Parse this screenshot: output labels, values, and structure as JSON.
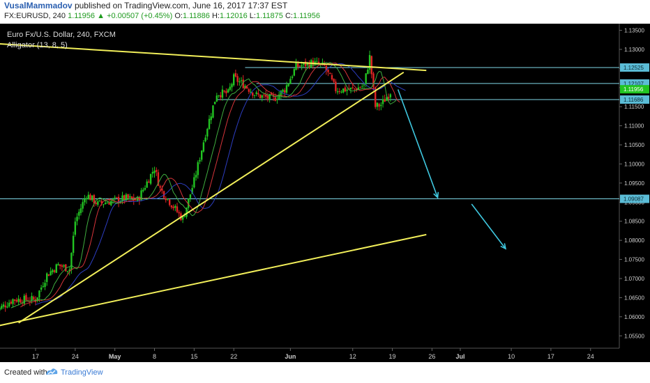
{
  "header": {
    "author": "VusalMammadov",
    "published": "published on TradingView.com, June 16, 2017 17:37 EST",
    "symbol": "FX:EURUSD, 240",
    "last": "1.11956",
    "change": "+0.00507 (+0.45%)",
    "o_label": "O:",
    "o_value": "1.11886",
    "h_label": "H:",
    "h_value": "1.12016",
    "l_label": "L:",
    "l_value": "1.11875",
    "c_label": "C:",
    "c_value": "1.11956"
  },
  "chart_title": "Euro Fx/U.S. Dollar, 240, FXCM",
  "indicator": "Alligator (13, 8, 5)",
  "footer": {
    "created": "Created with",
    "brand": "TradingView"
  },
  "colors": {
    "background": "#000000",
    "up_candle": "#22c522",
    "down_candle": "#e02424",
    "trendline": "#f2ef5a",
    "horizontal": "#7fd8e8",
    "arrow": "#3fc8e0",
    "price_tag": "#5bbcd6",
    "jaw": "#2d3ec2",
    "teeth": "#d6343a",
    "lips": "#3fae3f"
  },
  "chart_data": {
    "type": "candlestick",
    "yaxis_ticks": [
      "1.13500",
      "1.13000",
      "1.12500",
      "1.12000",
      "1.11500",
      "1.11000",
      "1.10500",
      "1.10000",
      "1.09500",
      "1.09000",
      "1.08500",
      "1.08000",
      "1.07500",
      "1.07000",
      "1.06500",
      "1.06000",
      "1.05500"
    ],
    "ylim": [
      1.0545,
      1.136
    ],
    "xaxis_ticks": [
      "17",
      "24",
      "May",
      "8",
      "15",
      "22",
      "Jun",
      "12",
      "19",
      "26",
      "Jul",
      "10",
      "17",
      "24"
    ],
    "price_tags": [
      "1.12525",
      "1.12107",
      "1.11956",
      "1.11686",
      "1.09087"
    ],
    "last_price": 1.11956,
    "horizontal_levels": [
      1.12525,
      1.12107,
      1.11686,
      1.09087
    ],
    "trendlines": [
      {
        "name": "upper",
        "from": [
          "Apr 10",
          1.1315
        ],
        "to": [
          "Jun 25",
          1.1245
        ]
      },
      {
        "name": "rising",
        "from": [
          "Apr 14",
          1.0584
        ],
        "to": [
          "Jun 21",
          1.124
        ]
      },
      {
        "name": "lower",
        "from": [
          "Apr 10",
          1.0575
        ],
        "to": [
          "Jun 25",
          1.0815
        ]
      }
    ],
    "arrows": [
      {
        "from": [
          "Jun 20",
          1.1195
        ],
        "to": [
          "Jun 27",
          1.0912
        ]
      },
      {
        "from": [
          "Jul 3",
          1.0895
        ],
        "to": [
          "Jul 9",
          1.0778
        ]
      }
    ],
    "close_path": [
      [
        "Apr 10",
        1.0615
      ],
      [
        "Apr 13",
        1.0645
      ],
      [
        "Apr 17",
        1.0645
      ],
      [
        "Apr 19",
        1.071
      ],
      [
        "Apr 21",
        1.0735
      ],
      [
        "Apr 23",
        1.0725
      ],
      [
        "Apr 24",
        1.085
      ],
      [
        "Apr 26",
        1.092
      ],
      [
        "Apr 28",
        1.0895
      ],
      [
        "May 1",
        1.0905
      ],
      [
        "May 3",
        1.091
      ],
      [
        "May 5",
        1.0905
      ],
      [
        "May 8",
        1.099
      ],
      [
        "May 9",
        1.0935
      ],
      [
        "May 11",
        1.0895
      ],
      [
        "May 13",
        1.0855
      ],
      [
        "May 15",
        1.0955
      ],
      [
        "May 17",
        1.108
      ],
      [
        "May 19",
        1.1185
      ],
      [
        "May 21",
        1.1185
      ],
      [
        "May 22",
        1.1225
      ],
      [
        "May 24",
        1.1205
      ],
      [
        "May 26",
        1.118
      ],
      [
        "May 29",
        1.117
      ],
      [
        "May 31",
        1.1195
      ],
      [
        "Jun 2",
        1.1255
      ],
      [
        "Jun 5",
        1.1265
      ],
      [
        "Jun 7",
        1.1255
      ],
      [
        "Jun 9",
        1.1195
      ],
      [
        "Jun 12",
        1.1195
      ],
      [
        "Jun 14",
        1.1205
      ],
      [
        "Jun 15",
        1.128
      ],
      [
        "Jun 16",
        1.115
      ],
      [
        "Jun 17",
        1.1155
      ],
      [
        "Jun 19",
        1.1196
      ]
    ]
  }
}
